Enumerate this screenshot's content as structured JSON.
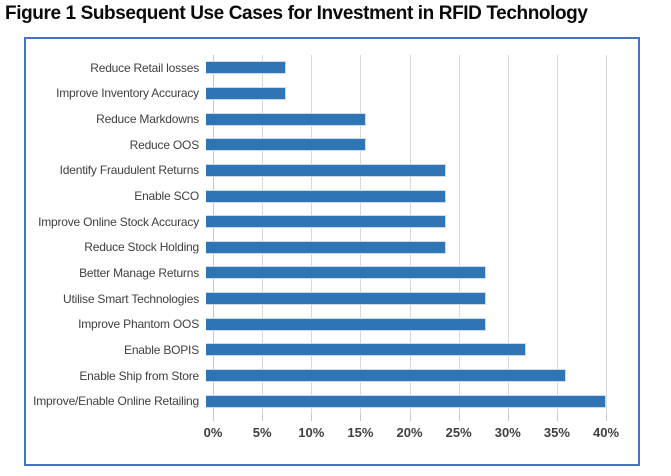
{
  "title": "Figure 1 Subsequent Use Cases for Investment in RFID Technology",
  "colors": {
    "bar_fill": "#2F74B5",
    "bar_border": "#CBDBEE",
    "chart_border": "#4472C4",
    "gridline": "#D9D9D9",
    "axis_line": "#C6C6C6",
    "label_text": "#404040",
    "title_text": "#0A0A0A"
  },
  "chart_data": {
    "type": "bar",
    "orientation": "horizontal",
    "title": "Figure 1 Subsequent Use Cases for Investment in RFID Technology",
    "xlabel": "",
    "ylabel": "",
    "unit": "%",
    "xlim": [
      0,
      40
    ],
    "xticks": [
      "0%",
      "5%",
      "10%",
      "15%",
      "20%",
      "25%",
      "30%",
      "35%",
      "40%"
    ],
    "grid": true,
    "legend": false,
    "categories": [
      "Reduce Retail losses",
      "Improve Inventory Accuracy",
      "Reduce Markdowns",
      "Reduce OOS",
      "Identify Fraudulent Returns",
      "Enable SCO",
      "Improve Online Stock Accuracy",
      "Reduce Stock Holding",
      "Better Manage Returns",
      "Utilise Smart Technologies",
      "Improve Phantom OOS",
      "Enable BOPIS",
      "Enable Ship from Store",
      "Improve/Enable Online Retailing"
    ],
    "values": [
      8,
      8,
      16,
      16,
      24,
      24,
      24,
      24,
      28,
      28,
      28,
      32,
      36,
      40
    ]
  }
}
